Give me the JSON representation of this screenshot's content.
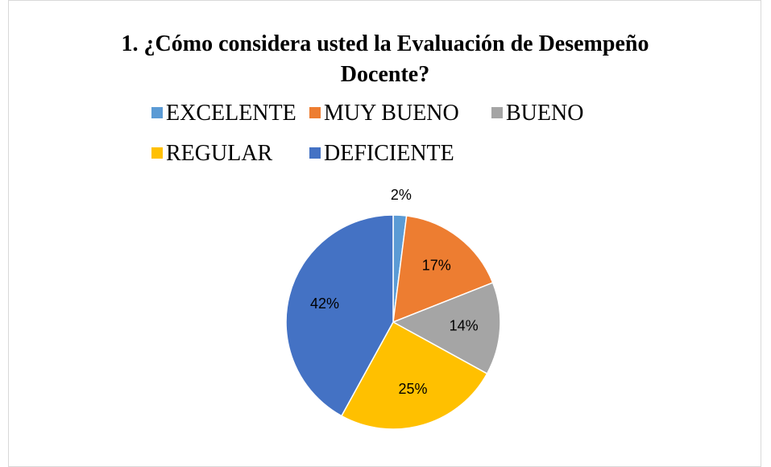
{
  "chart_data": {
    "type": "pie",
    "title": "1. ¿Cómo considera usted la Evaluación de Desempeño Docente?",
    "categories": [
      "EXCELENTE",
      "MUY BUENO",
      "BUENO",
      "REGULAR",
      "DEFICIENTE"
    ],
    "values": [
      2,
      17,
      14,
      25,
      42
    ],
    "value_labels": [
      "2%",
      "17%",
      "14%",
      "25%",
      "42%"
    ],
    "colors": [
      "#5b9bd5",
      "#ed7d31",
      "#a5a5a5",
      "#ffc000",
      "#4472c4"
    ],
    "legend": "top"
  }
}
